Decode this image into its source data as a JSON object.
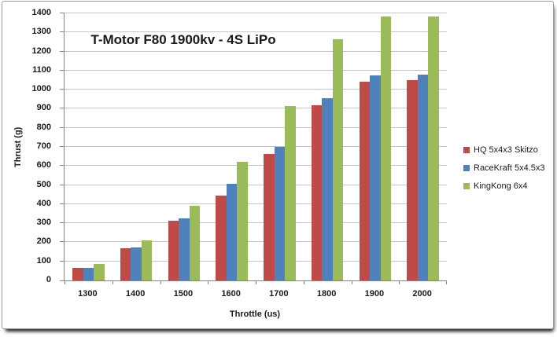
{
  "chart_data": {
    "type": "bar",
    "title": "T-Motor F80 1900kv - 4S LiPo",
    "xlabel": "Throttle (us)",
    "ylabel": "Thrust (g)",
    "categories": [
      "1300",
      "1400",
      "1500",
      "1600",
      "1700",
      "1800",
      "1900",
      "2000"
    ],
    "series": [
      {
        "name": "HQ 5x4x3 Skitzo",
        "color": "#BE4B48",
        "values": [
          65,
          170,
          315,
          445,
          665,
          920,
          1040,
          1050
        ]
      },
      {
        "name": "RaceKraft 5x4.5x3",
        "color": "#4F81BD",
        "values": [
          65,
          175,
          325,
          507,
          700,
          955,
          1073,
          1080
        ]
      },
      {
        "name": "KingKong 6x4",
        "color": "#9BBB59",
        "values": [
          88,
          212,
          392,
          620,
          915,
          1265,
          1385,
          1385
        ]
      }
    ],
    "ylim": [
      0,
      1400
    ],
    "ytick_step": 100,
    "yticks": [
      0,
      100,
      200,
      300,
      400,
      500,
      600,
      700,
      800,
      900,
      1000,
      1100,
      1200,
      1300,
      1400
    ],
    "grid": true,
    "legend_position": "right",
    "colors": {
      "gridline": "#C6C6C6",
      "axis": "#868686",
      "text": "#1A1A1A",
      "frame_border": "#9B9B9B",
      "background": "#FFFFFF"
    }
  }
}
